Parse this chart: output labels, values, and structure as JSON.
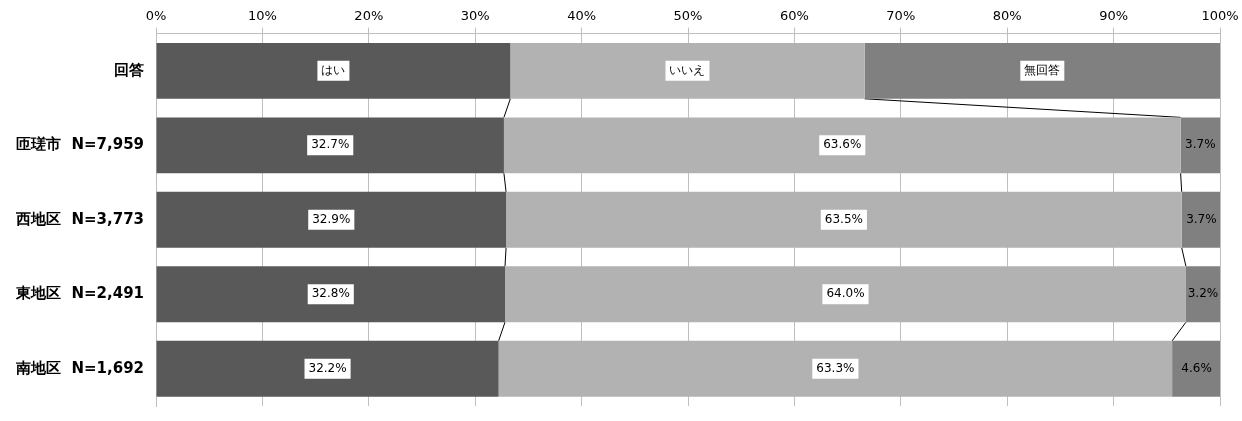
{
  "chart_data": {
    "type": "bar",
    "orientation": "horizontal",
    "stacked": true,
    "categories": [
      "回答",
      "匝瑳市  N=7,959",
      "西地区  N=3,773",
      "東地区  N=2,491",
      "南地区  N=1,692"
    ],
    "series": [
      {
        "color": "#595959",
        "values": [
          33.3,
          32.7,
          32.9,
          32.8,
          32.2
        ],
        "value_labels": [
          "はい",
          "32.7%",
          "32.9%",
          "32.8%",
          "32.2%"
        ]
      },
      {
        "color": "#b2b2b2",
        "values": [
          33.3,
          63.6,
          63.5,
          64.0,
          63.3
        ],
        "value_labels": [
          "いいえ",
          "63.6%",
          "63.5%",
          "64.0%",
          "63.3%"
        ]
      },
      {
        "color": "#808080",
        "values": [
          33.4,
          3.7,
          3.7,
          3.2,
          4.6
        ],
        "value_labels": [
          "無回答",
          "3.7%",
          "3.7%",
          "3.2%",
          "4.6%"
        ]
      }
    ],
    "xlim": [
      0,
      100
    ],
    "xticks": [
      {
        "value": 0,
        "label": "0%"
      },
      {
        "value": 10,
        "label": "10%"
      },
      {
        "value": 20,
        "label": "20%"
      },
      {
        "value": 30,
        "label": "30%"
      },
      {
        "value": 40,
        "label": "40%"
      },
      {
        "value": 50,
        "label": "50%"
      },
      {
        "value": 60,
        "label": "60%"
      },
      {
        "value": 70,
        "label": "70%"
      },
      {
        "value": 80,
        "label": "80%"
      },
      {
        "value": 90,
        "label": "90%"
      },
      {
        "value": 100,
        "label": "100%"
      }
    ],
    "grid": "x",
    "legend": false
  }
}
